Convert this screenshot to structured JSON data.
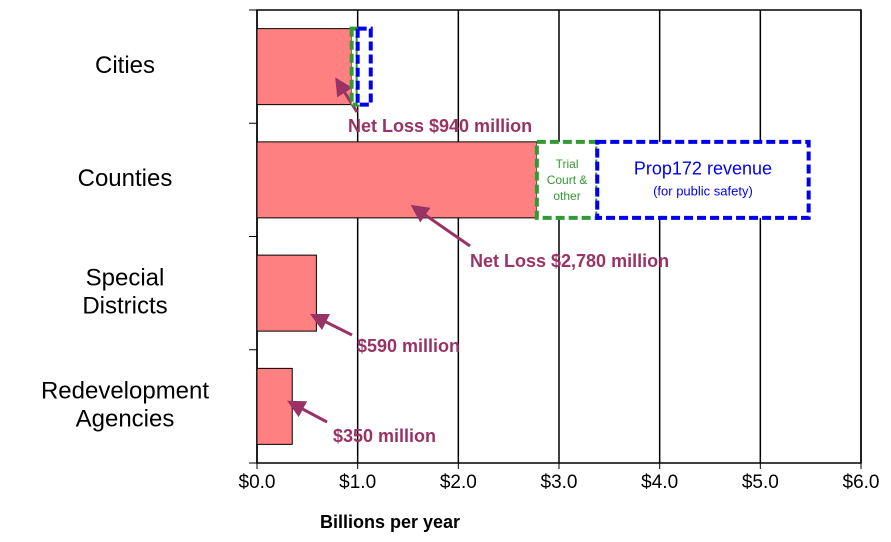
{
  "chart_data": {
    "type": "bar",
    "orientation": "horizontal",
    "stacked": true,
    "x_label": "Billions per year",
    "categories": [
      [
        "Cities"
      ],
      [
        "Counties"
      ],
      [
        "Special",
        "Districts"
      ],
      [
        "Redevelopment",
        "Agencies"
      ]
    ],
    "series": [
      {
        "color": "#ff8080",
        "style": "solid",
        "values": [
          0.94,
          2.78,
          0.59,
          0.35
        ],
        "value_labels": [
          "Net Loss $940 million",
          "Net Loss $2,780 million",
          "$590 million",
          "$350 million"
        ]
      },
      {
        "name": "Trial Court & other",
        "color": "#339933",
        "style": "dashed",
        "values": [
          0.06,
          0.6,
          null,
          null
        ]
      },
      {
        "name": "Prop172 revenue",
        "note": "(for public safety)",
        "color": "#0000ee",
        "style": "dashed",
        "values": [
          0.13,
          2.1,
          null,
          null
        ]
      }
    ],
    "label_color": "#993366",
    "xlim": [
      0,
      6
    ],
    "xticks": [
      {
        "value": 0,
        "label": "$0.0"
      },
      {
        "value": 1,
        "label": "$1.0"
      },
      {
        "value": 2,
        "label": "$2.0"
      },
      {
        "value": 3,
        "label": "$3.0"
      },
      {
        "value": 4,
        "label": "$4.0"
      },
      {
        "value": 5,
        "label": "$5.0"
      },
      {
        "value": 6,
        "label": "$6.0"
      }
    ],
    "grid": true
  }
}
